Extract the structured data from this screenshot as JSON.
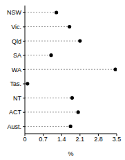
{
  "chart_data": {
    "type": "dot",
    "orientation": "horizontal",
    "categories": [
      "NSW",
      "Vic.",
      "Qld",
      "SA",
      "WA",
      "Tas.",
      "NT",
      "ACT",
      "Aust."
    ],
    "values": [
      1.2,
      1.7,
      2.1,
      1.0,
      3.45,
      0.1,
      1.8,
      2.03,
      1.74
    ],
    "xlabel": "%",
    "xlim": [
      0,
      3.5
    ],
    "xticks": [
      0,
      0.7,
      1.4,
      2.1,
      2.8,
      3.5
    ],
    "color": "#000000",
    "grid": false
  }
}
